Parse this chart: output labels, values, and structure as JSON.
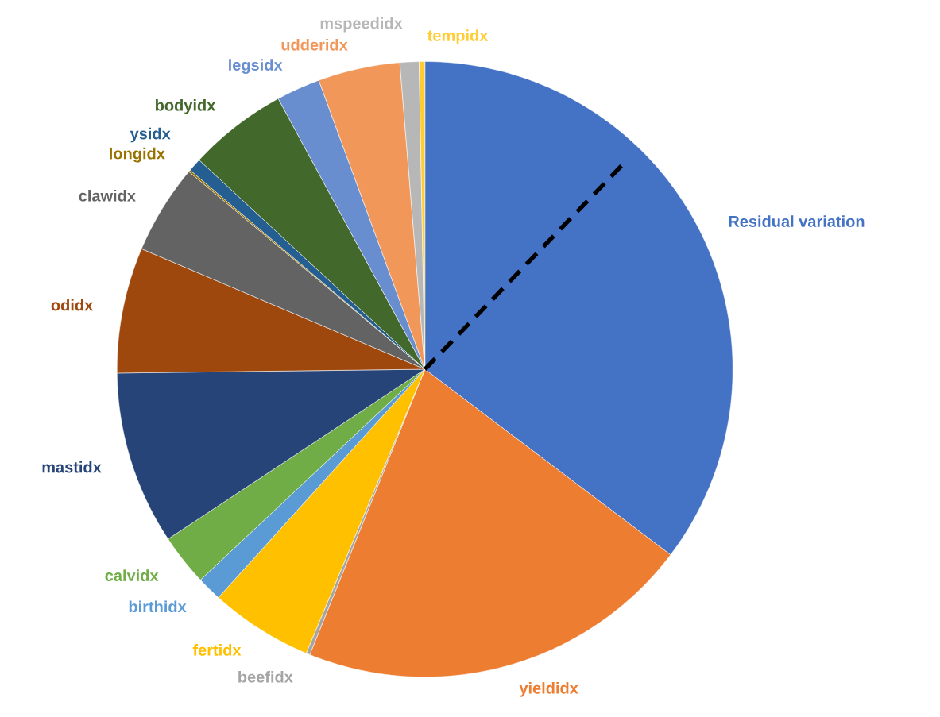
{
  "chart_data": {
    "type": "pie",
    "needle": "Residual variation",
    "categories": [
      "Residual variation",
      "yieldidx",
      "beefidx",
      "fertidx",
      "birthidx",
      "calvidx",
      "mastidx",
      "odidx",
      "clawidx",
      "longidx",
      "ysidx",
      "bodyidx",
      "legsidx",
      "udderidx",
      "mspeedidx",
      "tempidx"
    ],
    "values": [
      35.3,
      20.8,
      0.2,
      5.4,
      1.3,
      2.7,
      9.1,
      6.6,
      4.7,
      0.1,
      0.7,
      5.2,
      2.3,
      4.3,
      1.0,
      0.3
    ],
    "colors": [
      "#4472c4",
      "#ed7d31",
      "#a5a5a5",
      "#ffc000",
      "#5b9bd5",
      "#70ad47",
      "#264478",
      "#9e480e",
      "#636363",
      "#997300",
      "#255e91",
      "#43682b",
      "#698ed0",
      "#f1975a",
      "#b7b7b7",
      "#ffcd33"
    ]
  }
}
